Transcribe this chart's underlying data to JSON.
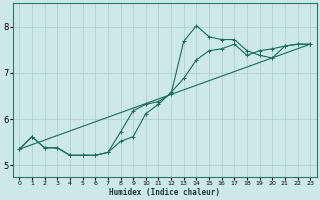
{
  "xlabel": "Humidex (Indice chaleur)",
  "bg_color": "#cce8e8",
  "grid_color": "#aacccc",
  "line_color": "#1a6b5a",
  "xlim": [
    -0.5,
    23.5
  ],
  "ylim": [
    4.75,
    8.5
  ],
  "xticks": [
    0,
    1,
    2,
    3,
    4,
    5,
    6,
    7,
    8,
    9,
    10,
    11,
    12,
    13,
    14,
    15,
    16,
    17,
    18,
    19,
    20,
    21,
    22,
    23
  ],
  "yticks": [
    5,
    6,
    7,
    8
  ],
  "curve1_x": [
    0,
    1,
    2,
    3,
    4,
    5,
    6,
    7,
    8,
    9,
    10,
    11,
    12,
    13,
    14,
    15,
    16,
    17,
    18,
    19,
    20,
    21,
    22,
    23
  ],
  "curve1_y": [
    5.35,
    5.62,
    5.38,
    5.38,
    5.22,
    5.22,
    5.22,
    5.28,
    5.52,
    5.62,
    6.12,
    6.32,
    6.58,
    6.88,
    7.28,
    7.48,
    7.52,
    7.62,
    7.38,
    7.48,
    7.52,
    7.58,
    7.62,
    7.62
  ],
  "curve2_x": [
    0,
    1,
    2,
    3,
    4,
    5,
    6,
    7,
    8,
    9,
    10,
    11,
    12,
    13,
    14,
    15,
    16,
    17,
    18,
    19,
    20,
    21,
    22,
    23
  ],
  "curve2_y": [
    5.35,
    5.62,
    5.38,
    5.38,
    5.22,
    5.22,
    5.22,
    5.28,
    5.72,
    6.18,
    6.32,
    6.38,
    6.55,
    7.68,
    8.02,
    7.78,
    7.72,
    7.72,
    7.48,
    7.38,
    7.32,
    7.58,
    7.62,
    7.62
  ],
  "trend_x": [
    0,
    23
  ],
  "trend_y": [
    5.35,
    7.62
  ]
}
